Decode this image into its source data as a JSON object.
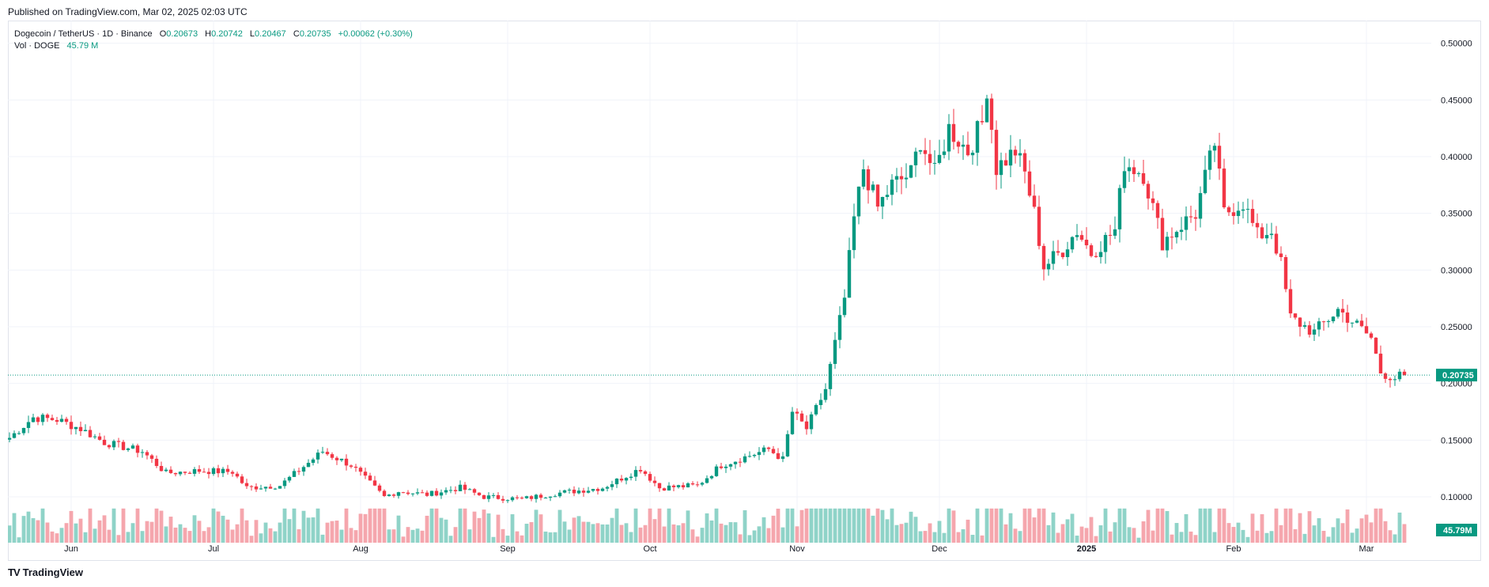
{
  "published": "Published on TradingView.com, Mar 02, 2025 02:03 UTC",
  "legend": {
    "symbol": "Dogecoin / TetherUS · 1D · Binance",
    "open_label": "O",
    "open": "0.20673",
    "high_label": "H",
    "high": "0.20742",
    "low_label": "L",
    "low": "0.20467",
    "close_label": "C",
    "close": "0.20735",
    "change": "+0.00062 (+0.30%)",
    "vol_label": "Vol · DOGE",
    "vol_value": "45.79 M"
  },
  "footer": {
    "logo": "TV",
    "brand": "TradingView"
  },
  "colors": {
    "up": "#089981",
    "down": "#f23645",
    "vol_up": "#8fd3c8",
    "vol_down": "#f5a6ad",
    "grid": "#f0f3fa",
    "text": "#131722"
  },
  "chart_data": {
    "type": "candlestick",
    "ylim": [
      0.07,
      0.52
    ],
    "y_ticks": [
      "0.10000",
      "0.15000",
      "0.20000",
      "0.25000",
      "0.30000",
      "0.35000",
      "0.40000",
      "0.45000",
      "0.50000"
    ],
    "y_tick_values": [
      0.1,
      0.15,
      0.2,
      0.25,
      0.3,
      0.35,
      0.4,
      0.45,
      0.5
    ],
    "x_labels": [
      {
        "day": 13,
        "label": "Jun"
      },
      {
        "day": 43,
        "label": "Jul"
      },
      {
        "day": 74,
        "label": "Aug"
      },
      {
        "day": 105,
        "label": "Sep"
      },
      {
        "day": 135,
        "label": "Oct"
      },
      {
        "day": 166,
        "label": "Nov"
      },
      {
        "day": 196,
        "label": "Dec"
      },
      {
        "day": 227,
        "label": "2025"
      },
      {
        "day": 258,
        "label": "Feb"
      },
      {
        "day": 286,
        "label": "Mar"
      }
    ],
    "last_price_label": "0.20735",
    "last_price": 0.20735,
    "volume_label": "45.79M",
    "segments": [
      [
        0,
        0.152
      ],
      [
        5,
        0.17
      ],
      [
        10,
        0.168
      ],
      [
        15,
        0.16
      ],
      [
        20,
        0.148
      ],
      [
        28,
        0.14
      ],
      [
        33,
        0.121
      ],
      [
        40,
        0.123
      ],
      [
        47,
        0.122
      ],
      [
        50,
        0.108
      ],
      [
        57,
        0.11
      ],
      [
        60,
        0.12
      ],
      [
        66,
        0.14
      ],
      [
        72,
        0.128
      ],
      [
        79,
        0.1
      ],
      [
        82,
        0.105
      ],
      [
        88,
        0.102
      ],
      [
        95,
        0.108
      ],
      [
        100,
        0.1
      ],
      [
        108,
        0.098
      ],
      [
        115,
        0.103
      ],
      [
        125,
        0.108
      ],
      [
        133,
        0.125
      ],
      [
        137,
        0.108
      ],
      [
        145,
        0.11
      ],
      [
        150,
        0.128
      ],
      [
        160,
        0.142
      ],
      [
        163,
        0.133
      ],
      [
        165,
        0.175
      ],
      [
        168,
        0.16
      ],
      [
        172,
        0.195
      ],
      [
        176,
        0.275
      ],
      [
        178,
        0.345
      ],
      [
        180,
        0.39
      ],
      [
        183,
        0.355
      ],
      [
        186,
        0.375
      ],
      [
        190,
        0.385
      ],
      [
        192,
        0.415
      ],
      [
        195,
        0.385
      ],
      [
        198,
        0.425
      ],
      [
        202,
        0.405
      ],
      [
        205,
        0.43
      ],
      [
        206,
        0.462
      ],
      [
        208,
        0.39
      ],
      [
        212,
        0.405
      ],
      [
        214,
        0.385
      ],
      [
        216,
        0.35
      ],
      [
        218,
        0.303
      ],
      [
        222,
        0.318
      ],
      [
        225,
        0.335
      ],
      [
        228,
        0.315
      ],
      [
        233,
        0.335
      ],
      [
        235,
        0.395
      ],
      [
        239,
        0.385
      ],
      [
        243,
        0.325
      ],
      [
        247,
        0.34
      ],
      [
        250,
        0.35
      ],
      [
        254,
        0.412
      ],
      [
        256,
        0.35
      ],
      [
        260,
        0.36
      ],
      [
        263,
        0.33
      ],
      [
        266,
        0.335
      ],
      [
        268,
        0.305
      ],
      [
        270,
        0.258
      ],
      [
        275,
        0.245
      ],
      [
        280,
        0.265
      ],
      [
        283,
        0.255
      ],
      [
        287,
        0.24
      ],
      [
        289,
        0.21
      ],
      [
        292,
        0.205
      ],
      [
        294,
        0.207
      ]
    ]
  }
}
